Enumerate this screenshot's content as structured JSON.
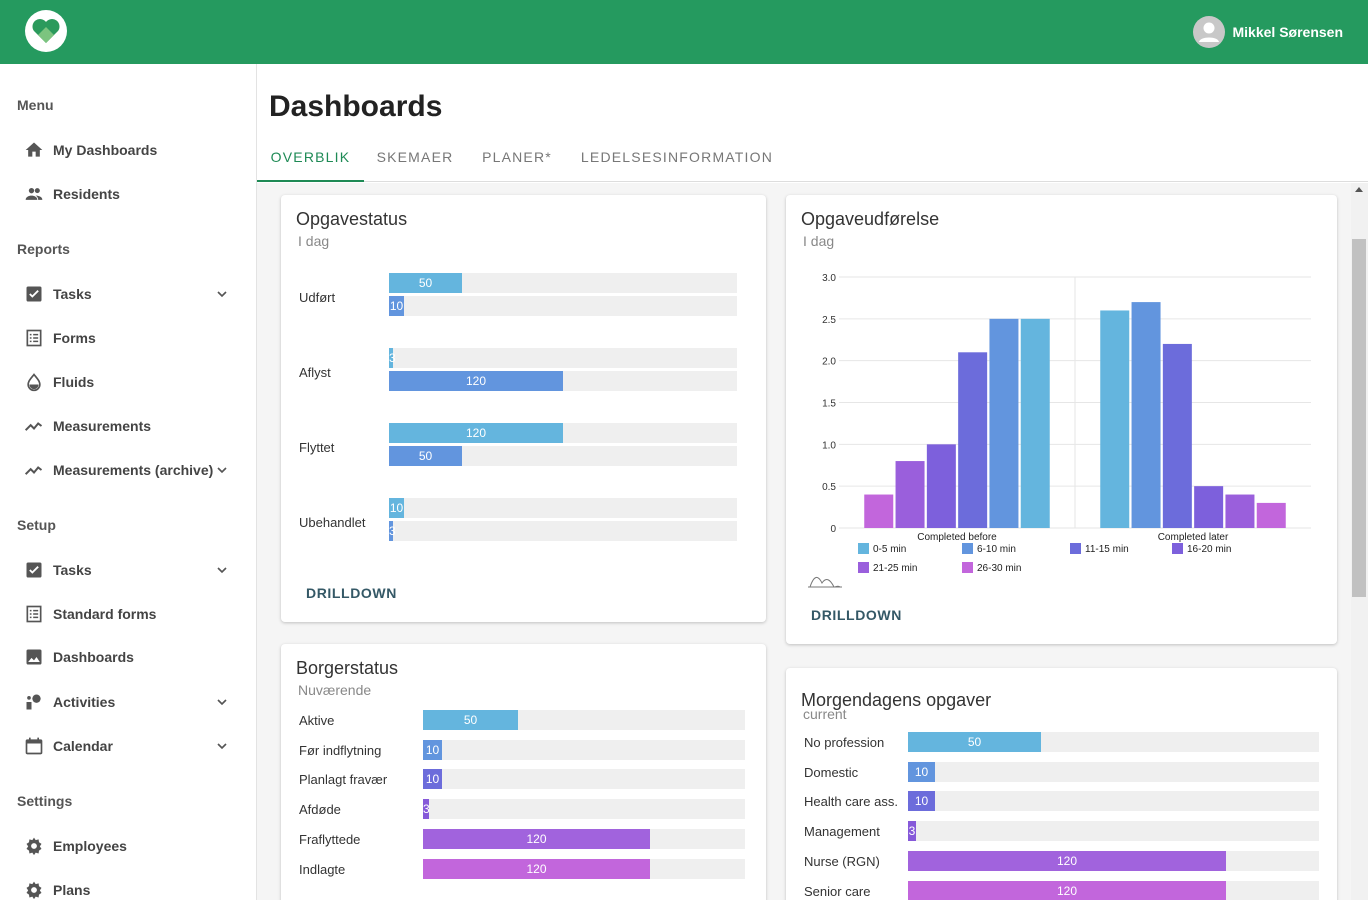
{
  "header": {
    "user_name": "Mikkel Sørensen",
    "brand_color": "#259a5f"
  },
  "sidebar": {
    "sections": {
      "menu": "Menu",
      "reports": "Reports",
      "setup": "Setup",
      "settings": "Settings"
    },
    "menu_items": [
      {
        "label": "My Dashboards",
        "icon": "home-icon"
      },
      {
        "label": "Residents",
        "icon": "people-icon"
      }
    ],
    "report_items": [
      {
        "label": "Tasks",
        "icon": "checkbox-icon",
        "expandable": true
      },
      {
        "label": "Forms",
        "icon": "form-icon",
        "expandable": false
      },
      {
        "label": "Fluids",
        "icon": "drop-icon",
        "expandable": false
      },
      {
        "label": "Measurements",
        "icon": "trend-icon",
        "expandable": false
      },
      {
        "label": "Measurements (archive)",
        "icon": "trend-icon",
        "expandable": true
      }
    ],
    "setup_items": [
      {
        "label": "Tasks",
        "icon": "checkbox-icon",
        "expandable": true
      },
      {
        "label": "Standard forms",
        "icon": "form-icon",
        "expandable": false
      },
      {
        "label": "Dashboards",
        "icon": "image-icon",
        "expandable": false
      },
      {
        "label": "Activities",
        "icon": "activity-icon",
        "expandable": true
      },
      {
        "label": "Calendar",
        "icon": "calendar-icon",
        "expandable": true
      }
    ],
    "settings_items": [
      {
        "label": "Employees",
        "icon": "gear-icon"
      },
      {
        "label": "Plans",
        "icon": "gear-icon"
      }
    ]
  },
  "page": {
    "title": "Dashboards",
    "tabs": [
      {
        "label": "OVERBLIK",
        "active": true
      },
      {
        "label": "SKEMAER",
        "active": false
      },
      {
        "label": "PLANER*",
        "active": false
      },
      {
        "label": "LEDELSESINFORMATION",
        "active": false
      }
    ]
  },
  "opgavestatus": {
    "title": "Opgavestatus",
    "subtitle": "I dag",
    "drilldown": "DRILLDOWN",
    "max": 240,
    "colors": [
      "#64b5de",
      "#6295de"
    ],
    "rows": [
      {
        "label": "Udført",
        "values": [
          50,
          10
        ]
      },
      {
        "label": "Aflyst",
        "values": [
          3,
          120
        ]
      },
      {
        "label": "Flyttet",
        "values": [
          120,
          50
        ]
      },
      {
        "label": "Ubehandlet",
        "values": [
          10,
          3
        ]
      }
    ]
  },
  "borgerstatus": {
    "title": "Borgerstatus",
    "subtitle": "Nuværende",
    "max": 170,
    "rows": [
      {
        "label": "Aktive",
        "value": 50,
        "color": "#64b5de"
      },
      {
        "label": "Før indflytning",
        "value": 10,
        "color": "#6295de"
      },
      {
        "label": "Planlagt fravær",
        "value": 10,
        "color": "#6c6cdb"
      },
      {
        "label": "Afdøde",
        "value": 3,
        "color": "#8659d9"
      },
      {
        "label": "Fraflyttede",
        "value": 120,
        "color": "#a163dd"
      },
      {
        "label": "Indlagte",
        "value": 120,
        "color": "#c266dc"
      }
    ]
  },
  "morgendagens": {
    "title": "Morgendagens opgaver",
    "subtitle": "current",
    "max": 155,
    "rows": [
      {
        "label": "No profession",
        "value": 50,
        "color": "#64b5de"
      },
      {
        "label": "Domestic",
        "value": 10,
        "color": "#6295de"
      },
      {
        "label": "Health care ass.",
        "value": 10,
        "color": "#6c6cdb"
      },
      {
        "label": "Management",
        "value": 3,
        "color": "#8659d9"
      },
      {
        "label": "Nurse (RGN)",
        "value": 120,
        "color": "#a163dd"
      },
      {
        "label": "Senior care",
        "value": 120,
        "color": "#c266dc"
      }
    ]
  },
  "opgaveudforelse": {
    "title": "Opgaveudførelse",
    "subtitle": "I dag",
    "drilldown": "DRILLDOWN",
    "chart_data": {
      "type": "bar",
      "categories": [
        "Completed before",
        "Completed later"
      ],
      "ylim": [
        0,
        3.0
      ],
      "yticks": [
        "0",
        "0.5",
        "1.0",
        "1.5",
        "2.0",
        "2.5",
        "3.0"
      ],
      "series": [
        {
          "name": "0-5 min",
          "color": "#64b5de",
          "values": [
            2.5,
            2.6
          ]
        },
        {
          "name": "6-10 min",
          "color": "#6295de",
          "values": [
            2.5,
            2.7
          ]
        },
        {
          "name": "11-15 min",
          "color": "#6c6cdb",
          "values": [
            2.1,
            2.2
          ]
        },
        {
          "name": "16-20 min",
          "color": "#7d60dc",
          "values": [
            1.0,
            0.5
          ]
        },
        {
          "name": "21-25 min",
          "color": "#9a5fdc",
          "values": [
            0.8,
            0.4
          ]
        },
        {
          "name": "26-30 min",
          "color": "#c266dc",
          "values": [
            0.4,
            0.3
          ]
        }
      ]
    }
  }
}
